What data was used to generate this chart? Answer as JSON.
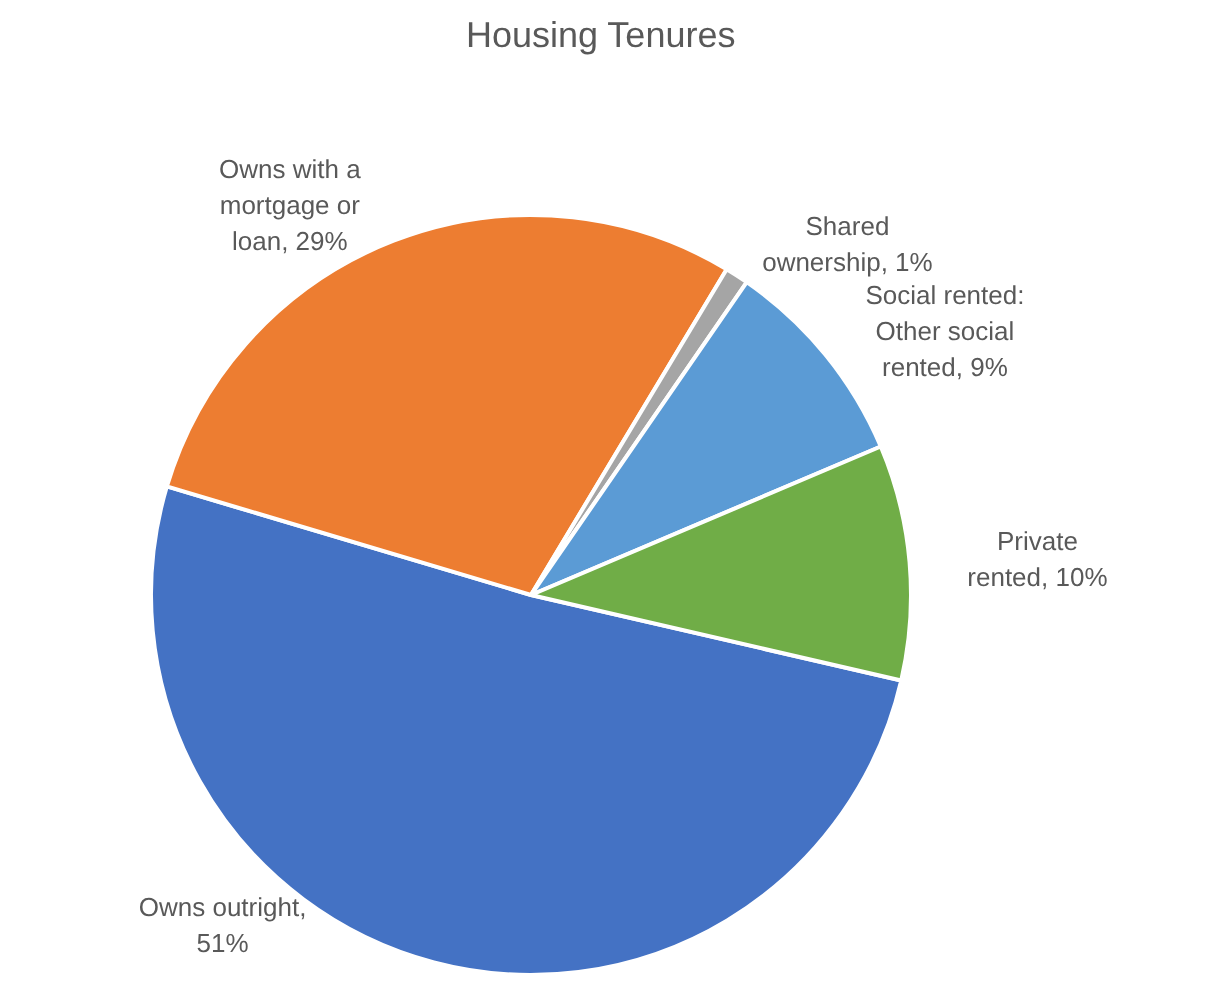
{
  "chart_data": {
    "type": "pie",
    "title": "Housing Tenures",
    "categories": [
      "Owns outright",
      "Owns with a mortgage or loan",
      "Shared ownership",
      "Social rented: Other social rented",
      "Private rented"
    ],
    "values": [
      51,
      29,
      1,
      9,
      10
    ],
    "value_labels": [
      ", 51%",
      ", 29%",
      ", 1%",
      ", 9%",
      ", 10%"
    ],
    "colors": [
      "#4472c4",
      "#ed7d31",
      "#a5a5a5",
      "#5b9bd5",
      "#70ad47"
    ],
    "data_labels": true
  }
}
